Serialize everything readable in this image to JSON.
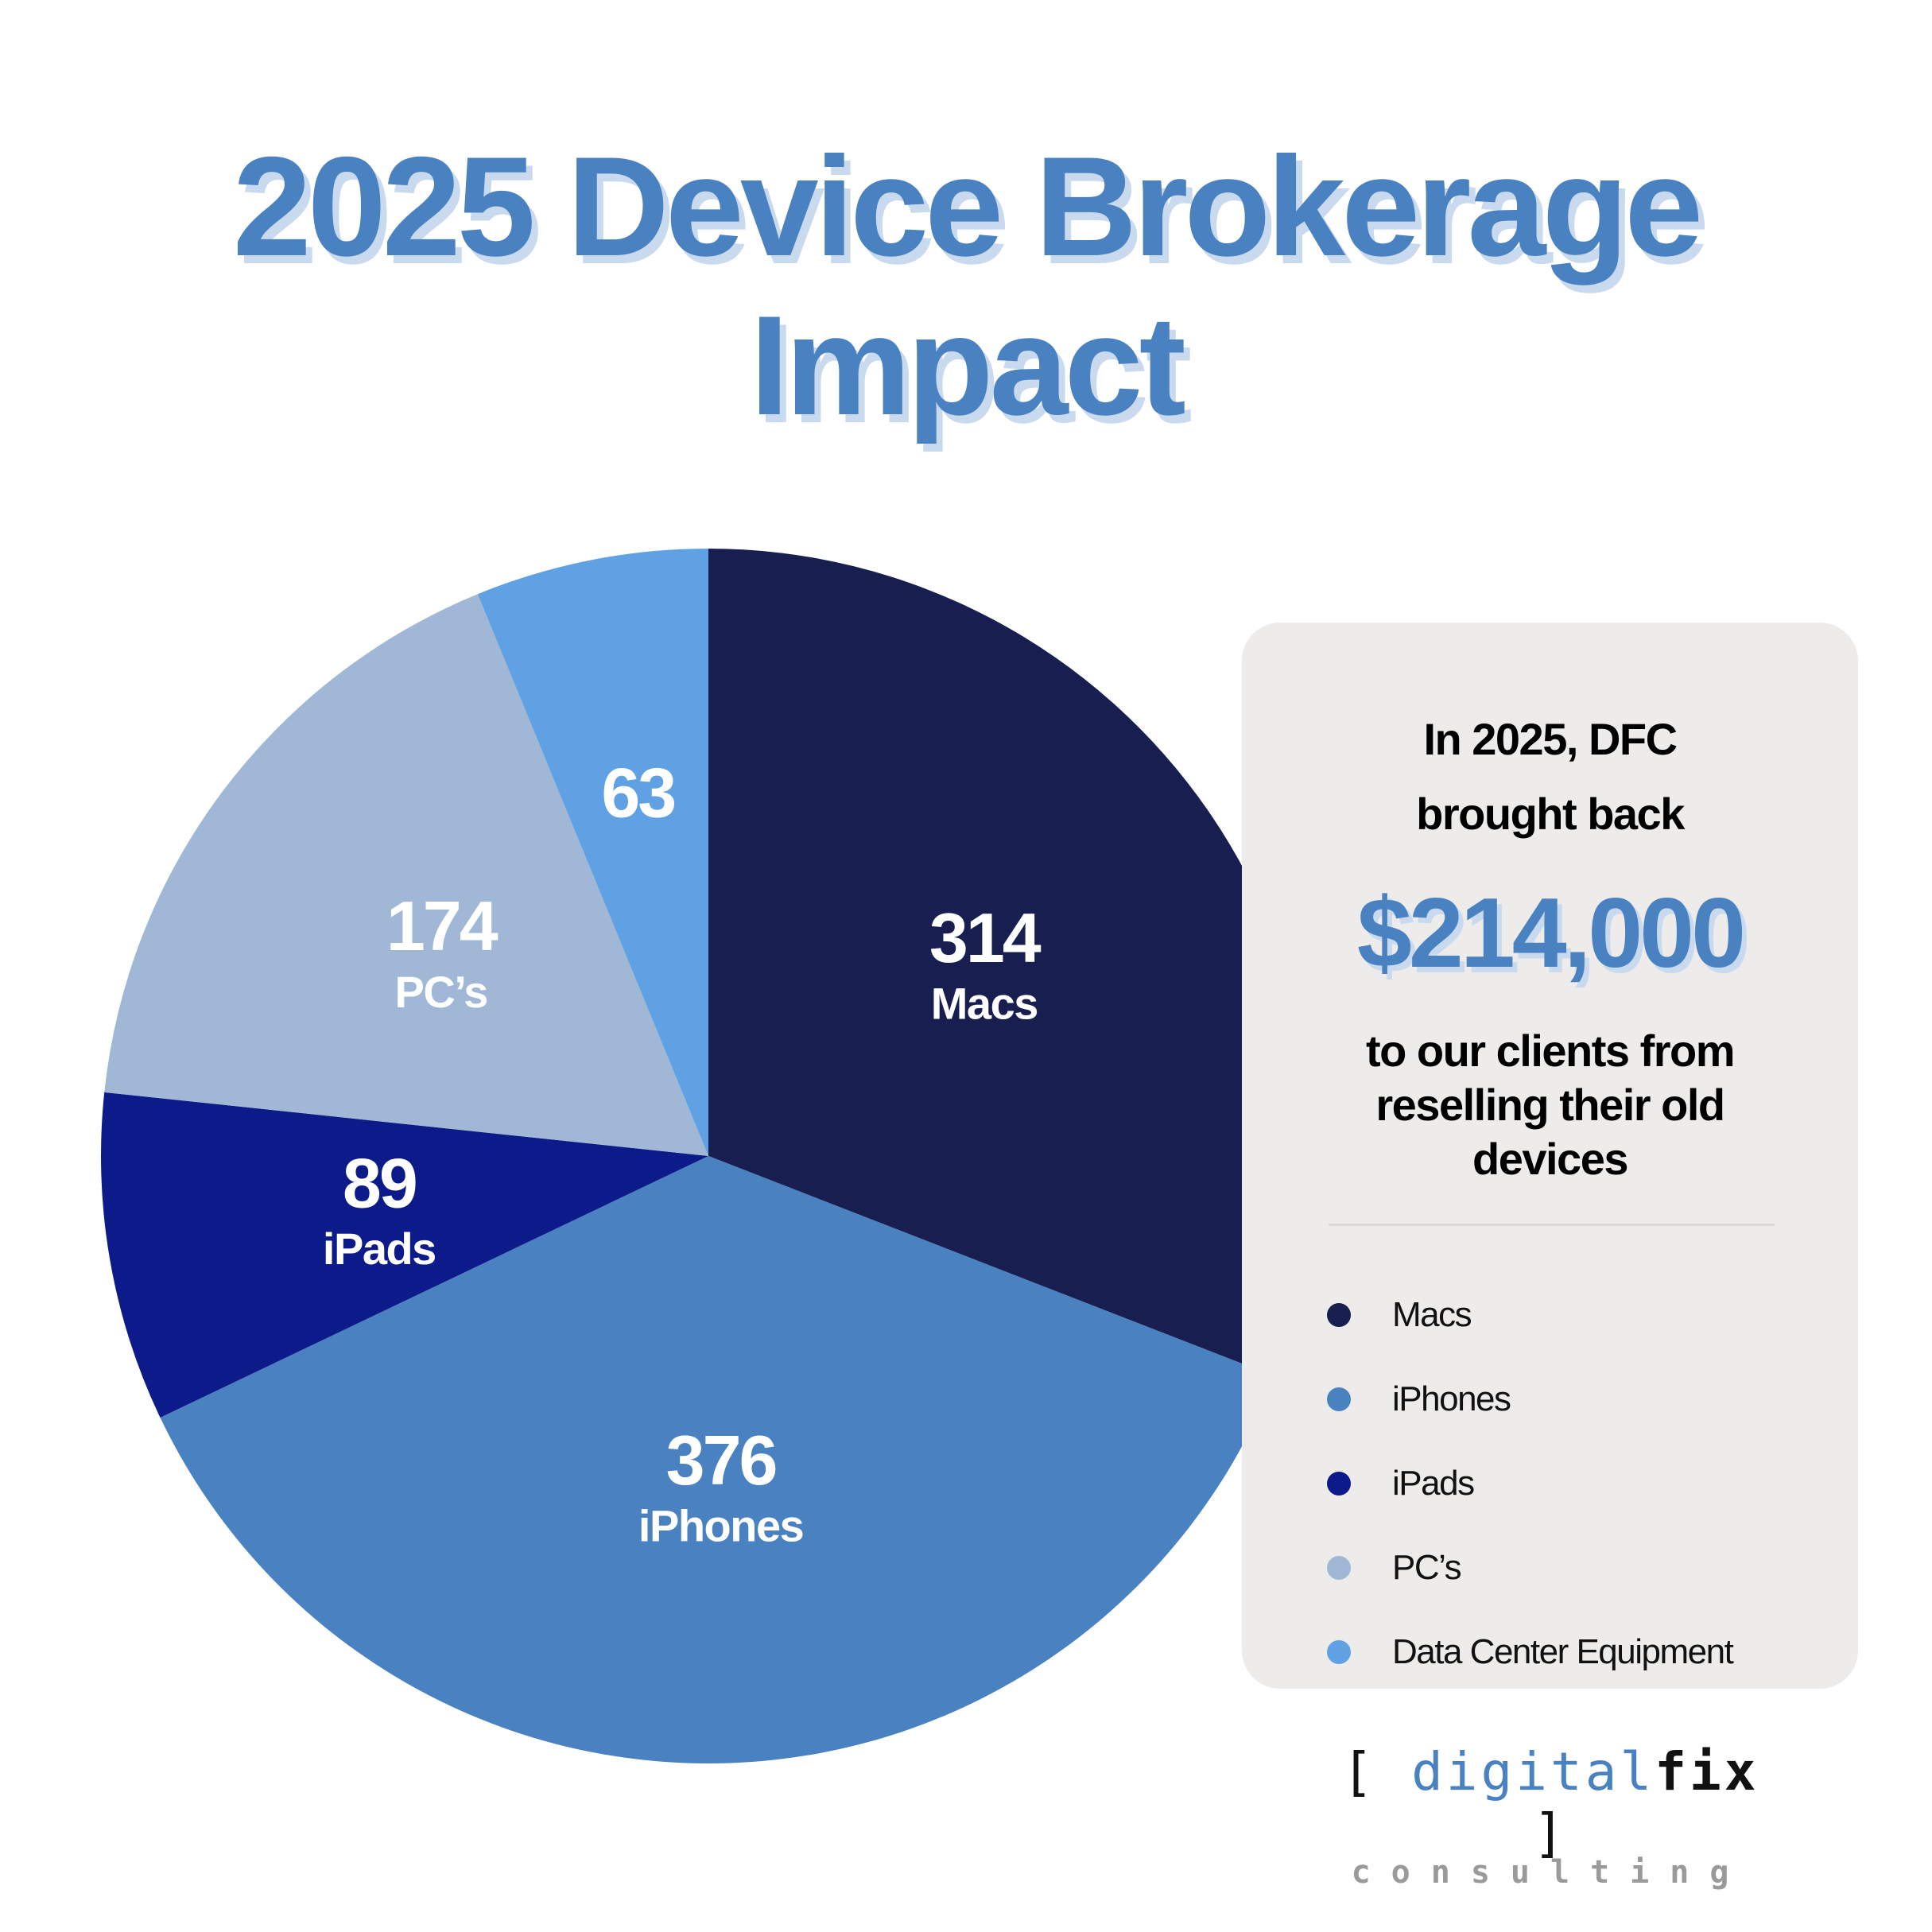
{
  "chart_data": {
    "type": "pie",
    "title": "2025 Device Brokerage Impact",
    "categories": [
      "Macs",
      "iPhones",
      "iPads",
      "PC’s",
      "Data Center Equipment"
    ],
    "values": [
      314,
      376,
      89,
      174,
      63
    ],
    "colors": [
      "#181f50",
      "#4a82c1",
      "#0d1a8a",
      "#a0b8d5",
      "#60a1e4"
    ],
    "legend": "right"
  },
  "panel": {
    "intro": "In 2025, DFC brought back",
    "amount": "$214,000",
    "outro": "to our clients from reselling their old devices"
  },
  "logo": {
    "open": "[",
    "digital": "digital",
    "fix": "fix",
    "close": "]",
    "tagline": "consulting"
  }
}
